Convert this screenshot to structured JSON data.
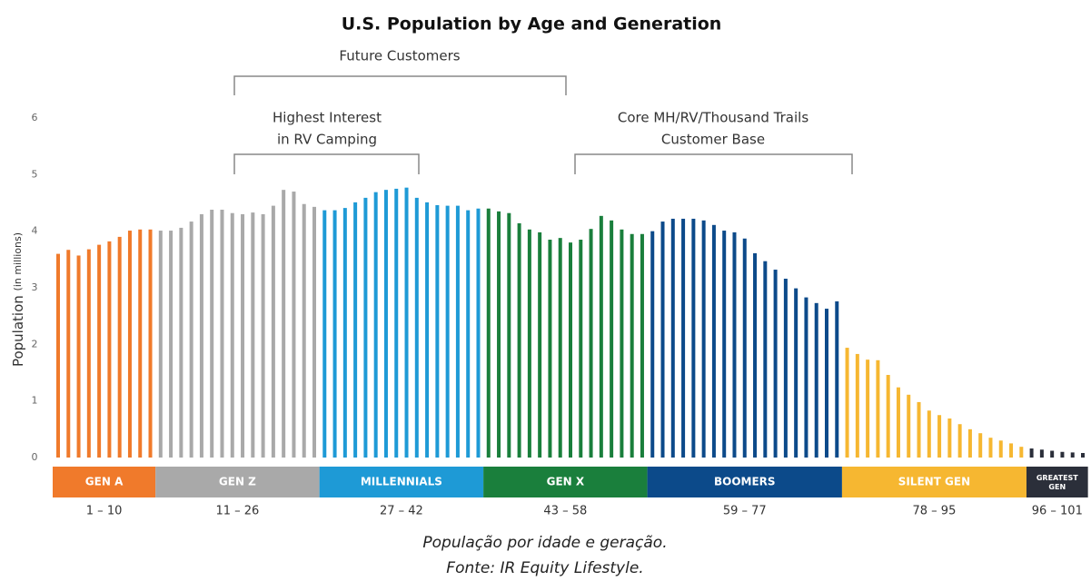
{
  "chart_data": {
    "type": "bar",
    "title": "U.S. Population by Age and Generation",
    "ylabel": "Population",
    "ylabel_unit": "(in millions)",
    "ylim": [
      0,
      6
    ],
    "yticks": [
      0,
      1,
      2,
      3,
      4,
      5,
      6
    ],
    "annotations": [
      "Future Customers",
      "Highest Interest",
      "in RV Camping",
      "Core MH/RV/Thousand Trails",
      "Customer Base"
    ],
    "caption": [
      "População por idade e geração.",
      "Fonte: IR Equity Lifestyle."
    ],
    "series": [
      {
        "name": "GEN A",
        "range": "1 – 10",
        "color": "#f07a2b",
        "values": [
          3.6,
          3.67,
          3.57,
          3.68,
          3.76,
          3.82,
          3.9,
          4.01,
          4.03,
          4.03
        ]
      },
      {
        "name": "GEN Z",
        "range": "11 – 26",
        "color": "#a9a9a9",
        "values": [
          4.01,
          4.01,
          4.06,
          4.17,
          4.3,
          4.38,
          4.38,
          4.32,
          4.3,
          4.33,
          4.3,
          4.45,
          4.73,
          4.7,
          4.48,
          4.43
        ]
      },
      {
        "name": "MILLENNIALS",
        "range": "27 – 42",
        "color": "#1e9ad6",
        "values": [
          4.37,
          4.37,
          4.41,
          4.51,
          4.59,
          4.69,
          4.73,
          4.75,
          4.77,
          4.59,
          4.51,
          4.46,
          4.45,
          4.45,
          4.37,
          4.4
        ]
      },
      {
        "name": "GEN X",
        "range": "43 – 58",
        "color": "#1a7f3c",
        "values": [
          4.4,
          4.35,
          4.32,
          4.14,
          4.03,
          3.98,
          3.85,
          3.88,
          3.8,
          3.85,
          4.04,
          4.27,
          4.19,
          4.03,
          3.95,
          3.95
        ]
      },
      {
        "name": "BOOMERS",
        "range": "59 – 77",
        "color": "#0c4a8a",
        "values": [
          4.0,
          4.17,
          4.22,
          4.22,
          4.22,
          4.19,
          4.11,
          4.01,
          3.98,
          3.87,
          3.61,
          3.47,
          3.32,
          3.16,
          2.99,
          2.83,
          2.73,
          2.63,
          2.76
        ]
      },
      {
        "name": "SILENT GEN",
        "range": "78 – 95",
        "color": "#f6b731",
        "values": [
          1.94,
          1.83,
          1.73,
          1.72,
          1.46,
          1.24,
          1.11,
          0.98,
          0.83,
          0.75,
          0.69,
          0.59,
          0.5,
          0.43,
          0.35,
          0.3,
          0.25,
          0.19
        ]
      },
      {
        "name": "GREATEST GEN",
        "range": "96 – 101",
        "color": "#2b2f3a",
        "values": [
          0.16,
          0.14,
          0.12,
          0.1,
          0.09,
          0.08
        ]
      }
    ]
  }
}
